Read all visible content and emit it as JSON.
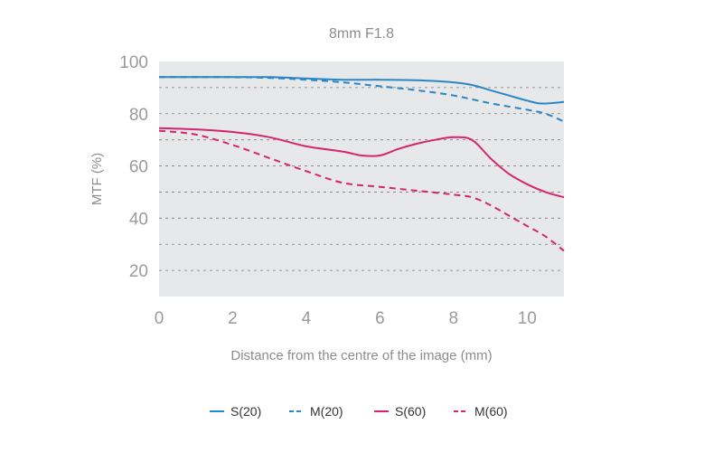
{
  "chart_data": {
    "type": "line",
    "title": "8mm F1.8",
    "xlabel": "Distance from the centre of the image (mm)",
    "ylabel": "MTF (%)",
    "xlim": [
      0,
      11
    ],
    "ylim": [
      10,
      100
    ],
    "xticks": [
      "0",
      "2",
      "4",
      "6",
      "8",
      "10"
    ],
    "yticks": [
      "20",
      "40",
      "60",
      "80",
      "100"
    ],
    "grid": "horizontal dashed",
    "legend": "bottom",
    "series": [
      {
        "name": "S(20)",
        "color": "#2a86c4",
        "dash": "solid",
        "x": [
          0,
          1,
          2,
          3,
          4,
          5,
          6,
          7,
          8,
          8.5,
          9,
          9.5,
          10,
          10.3,
          10.6,
          11
        ],
        "y": [
          94,
          94,
          94,
          94,
          93.5,
          93,
          93,
          92.8,
          92,
          91,
          89,
          87,
          85,
          84,
          84,
          84.5
        ]
      },
      {
        "name": "M(20)",
        "color": "#2a86c4",
        "dash": "dashed",
        "x": [
          0,
          1,
          2,
          3,
          4,
          5,
          6,
          7,
          8,
          9,
          10,
          10.5,
          11
        ],
        "y": [
          94,
          94,
          94,
          93.7,
          93,
          92,
          90.5,
          89,
          87,
          84,
          81.5,
          80,
          77
        ]
      },
      {
        "name": "S(60)",
        "color": "#d6246d",
        "dash": "solid",
        "x": [
          0,
          1,
          2,
          3,
          4,
          5,
          5.5,
          6,
          6.5,
          7,
          7.5,
          8,
          8.5,
          9,
          9.5,
          10,
          10.5,
          11
        ],
        "y": [
          74.5,
          74,
          73,
          71,
          67.5,
          65.5,
          64,
          64,
          66.5,
          68.5,
          70,
          71,
          70,
          63,
          57,
          53,
          50,
          48
        ]
      },
      {
        "name": "M(60)",
        "color": "#d6246d",
        "dash": "dashed",
        "x": [
          0,
          1,
          2,
          3,
          4,
          5,
          6,
          7,
          8,
          8.5,
          9,
          9.5,
          10,
          10.5,
          11
        ],
        "y": [
          73.5,
          72,
          68,
          63,
          58,
          53.5,
          52,
          50.5,
          49,
          48,
          45,
          41,
          37,
          33,
          27.5
        ]
      }
    ]
  }
}
